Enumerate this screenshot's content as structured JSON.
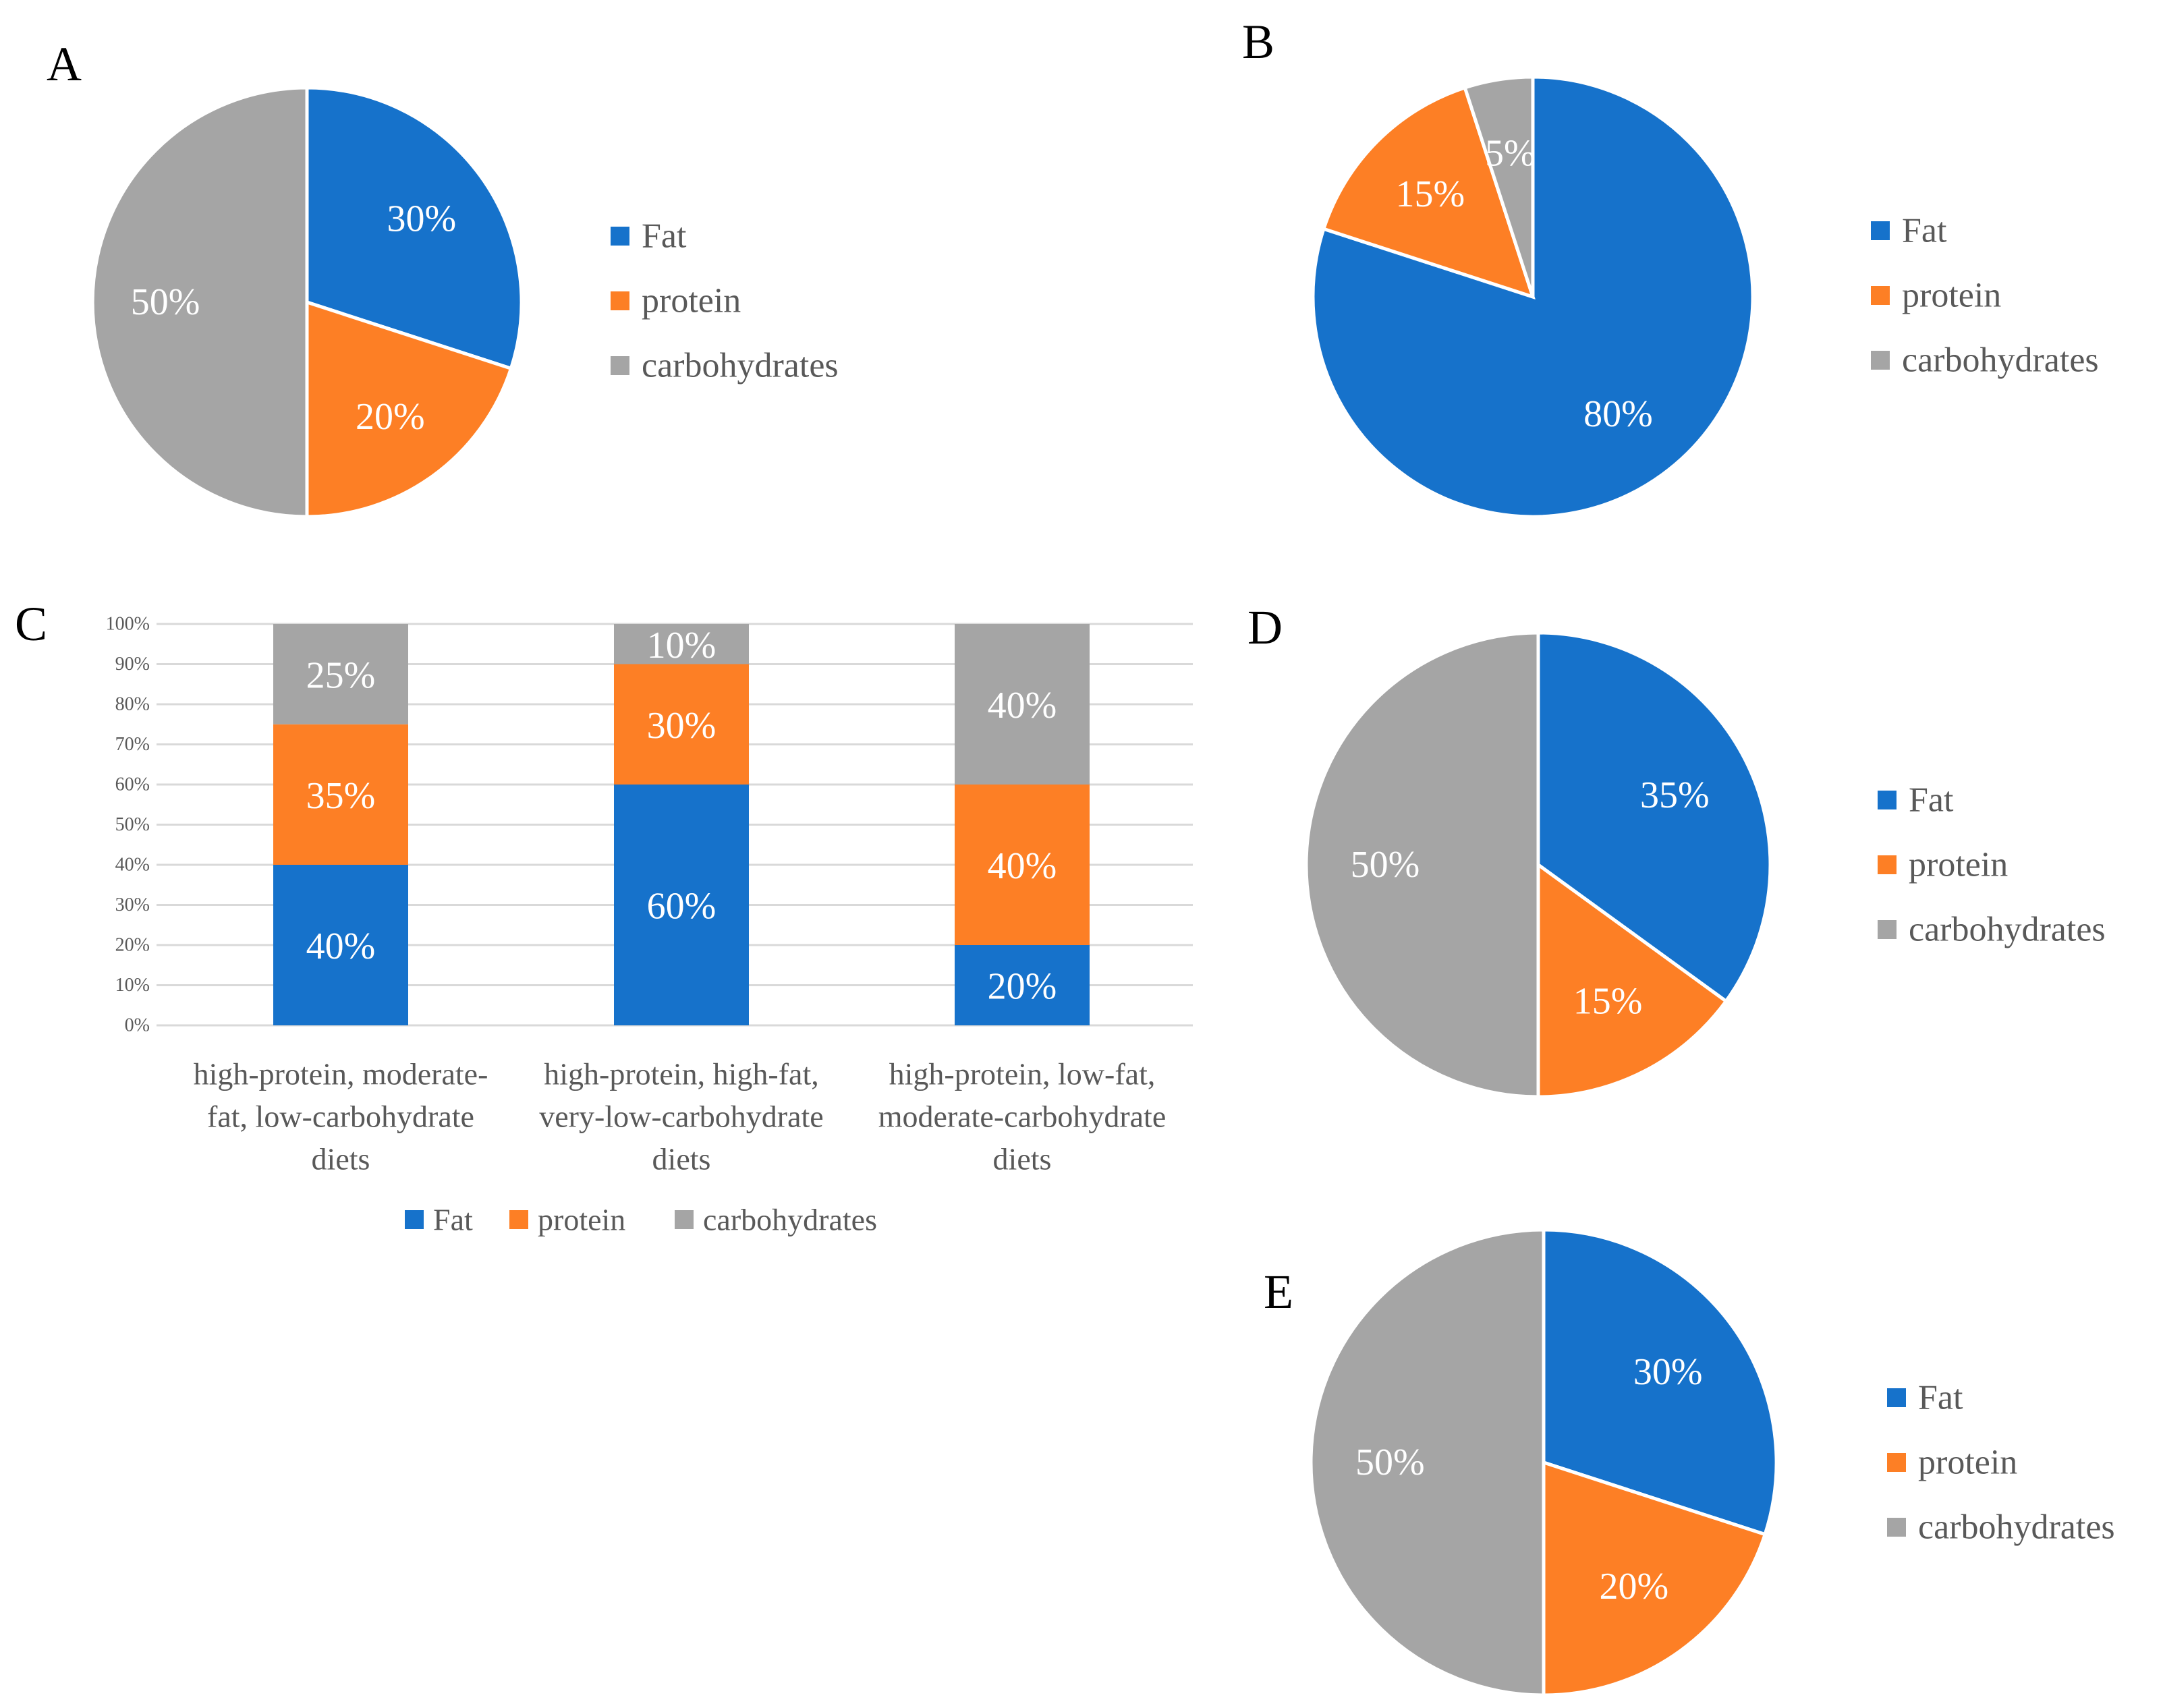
{
  "colors": {
    "Fat": "#1672cb",
    "protein": "#fd7f25",
    "carbohydrates": "#a5a5a5",
    "grid": "#d9d9d9",
    "axis_text": "#595959"
  },
  "chart_data": [
    {
      "panel": "A",
      "type": "pie",
      "categories": [
        "Fat",
        "protein",
        "carbohydrates"
      ],
      "values": [
        30,
        20,
        50
      ],
      "labels": [
        "30%",
        "20%",
        "50%"
      ],
      "legend": [
        "Fat",
        "protein",
        "carbohydrates"
      ],
      "legend_position": "right"
    },
    {
      "panel": "B",
      "type": "pie",
      "categories": [
        "Fat",
        "protein",
        "carbohydrates"
      ],
      "values": [
        80,
        15,
        5
      ],
      "labels": [
        "80%",
        "15%",
        "5%"
      ],
      "legend": [
        "Fat",
        "protein",
        "carbohydrates"
      ],
      "legend_position": "right"
    },
    {
      "panel": "C",
      "type": "bar",
      "stacked": true,
      "categories": [
        [
          "high-protein, moderate-",
          "fat, low-carbohydrate",
          "diets"
        ],
        [
          "high-protein, high-fat,",
          "very-low-carbohydrate",
          "diets"
        ],
        [
          "high-protein, low-fat,",
          "moderate-carbohydrate",
          "diets"
        ]
      ],
      "series": [
        {
          "name": "Fat",
          "values": [
            40,
            60,
            20
          ],
          "labels": [
            "40%",
            "60%",
            "20%"
          ]
        },
        {
          "name": "protein",
          "values": [
            35,
            30,
            40
          ],
          "labels": [
            "35%",
            "30%",
            "40%"
          ]
        },
        {
          "name": "carbohydrates",
          "values": [
            25,
            10,
            40
          ],
          "labels": [
            "25%",
            "10%",
            "40%"
          ]
        }
      ],
      "yticks": [
        "0%",
        "10%",
        "20%",
        "30%",
        "40%",
        "50%",
        "60%",
        "70%",
        "80%",
        "90%",
        "100%"
      ],
      "ylim": [
        0,
        100
      ],
      "grid": true,
      "legend": [
        "Fat",
        "protein",
        "carbohydrates"
      ],
      "legend_position": "bottom"
    },
    {
      "panel": "D",
      "type": "pie",
      "categories": [
        "Fat",
        "protein",
        "carbohydrates"
      ],
      "values": [
        35,
        15,
        50
      ],
      "labels": [
        "35%",
        "15%",
        "50%"
      ],
      "legend": [
        "Fat",
        "protein",
        "carbohydrates"
      ],
      "legend_position": "right"
    },
    {
      "panel": "E",
      "type": "pie",
      "categories": [
        "Fat",
        "protein",
        "carbohydrates"
      ],
      "values": [
        30,
        20,
        50
      ],
      "labels": [
        "30%",
        "20%",
        "50%"
      ],
      "legend": [
        "Fat",
        "protein",
        "carbohydrates"
      ],
      "legend_position": "right"
    }
  ]
}
